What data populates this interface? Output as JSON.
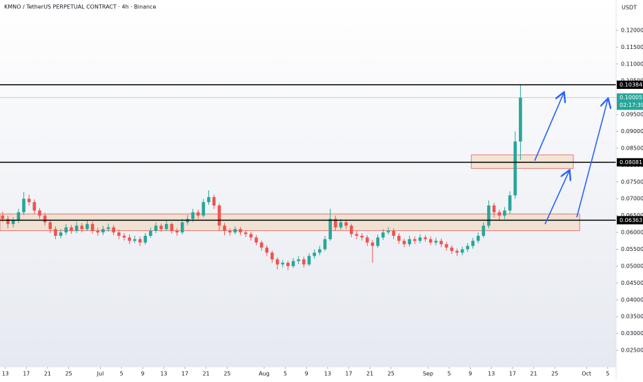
{
  "chart_data": {
    "type": "candlestick",
    "title": "KMNO / TetherUS PERPETUAL CONTRACT · 4h · Binance",
    "y_axis_label": "USDT",
    "up_color": "#26a69a",
    "down_color": "#ef5350",
    "xlim": [
      0,
      116.6
    ],
    "xticks": [
      {
        "value": 1,
        "label": "13"
      },
      {
        "value": 5,
        "label": "17"
      },
      {
        "value": 9,
        "label": "21"
      },
      {
        "value": 13,
        "label": "25"
      },
      {
        "value": 19,
        "label": "Jul"
      },
      {
        "value": 23,
        "label": "5"
      },
      {
        "value": 27,
        "label": "9"
      },
      {
        "value": 31,
        "label": "13"
      },
      {
        "value": 35,
        "label": "17"
      },
      {
        "value": 39,
        "label": "21"
      },
      {
        "value": 43,
        "label": "25"
      },
      {
        "value": 50,
        "label": "Aug"
      },
      {
        "value": 54,
        "label": "5"
      },
      {
        "value": 58,
        "label": "9"
      },
      {
        "value": 62,
        "label": "13"
      },
      {
        "value": 66,
        "label": "17"
      },
      {
        "value": 70,
        "label": "21"
      },
      {
        "value": 74,
        "label": "25"
      },
      {
        "value": 81,
        "label": "Sep"
      },
      {
        "value": 85,
        "label": "5"
      },
      {
        "value": 89,
        "label": "9"
      },
      {
        "value": 93,
        "label": "13"
      },
      {
        "value": 97,
        "label": "17"
      },
      {
        "value": 101,
        "label": "21"
      },
      {
        "value": 105,
        "label": "25"
      },
      {
        "value": 111,
        "label": "Oct"
      },
      {
        "value": 115,
        "label": "5"
      }
    ],
    "ylim": [
      0.0201,
      0.129
    ],
    "yticks": [
      {
        "value": 0.025,
        "label": "0.02500"
      },
      {
        "value": 0.03,
        "label": "0.03000"
      },
      {
        "value": 0.035,
        "label": "0.03500"
      },
      {
        "value": 0.04,
        "label": "0.04000"
      },
      {
        "value": 0.045,
        "label": "0.04500"
      },
      {
        "value": 0.05,
        "label": "0.05000"
      },
      {
        "value": 0.055,
        "label": "0.05500"
      },
      {
        "value": 0.06,
        "label": "0.06000"
      },
      {
        "value": 0.065,
        "label": "0.06500"
      },
      {
        "value": 0.07,
        "label": "0.07000"
      },
      {
        "value": 0.075,
        "label": "0.07500"
      },
      {
        "value": 0.08,
        "label": "0.08000"
      },
      {
        "value": 0.085,
        "label": "0.08500"
      },
      {
        "value": 0.09,
        "label": "0.09000"
      },
      {
        "value": 0.095,
        "label": "0.09500"
      },
      {
        "value": 0.1,
        "label": "0.10000"
      },
      {
        "value": 0.105,
        "label": "0.10500"
      },
      {
        "value": 0.11,
        "label": "0.11000"
      },
      {
        "value": 0.115,
        "label": "0.11500"
      },
      {
        "value": 0.12,
        "label": "0.12000"
      }
    ],
    "grid": false,
    "candles": {
      "open": [
        0.065,
        0.064,
        0.0625,
        0.0635,
        0.066,
        0.07,
        0.069,
        0.0665,
        0.065,
        0.063,
        0.061,
        0.059,
        0.06,
        0.0615,
        0.0605,
        0.062,
        0.061,
        0.0625,
        0.0605,
        0.06,
        0.061,
        0.0615,
        0.06,
        0.059,
        0.0585,
        0.0575,
        0.058,
        0.057,
        0.059,
        0.0605,
        0.062,
        0.061,
        0.0625,
        0.0605,
        0.06,
        0.063,
        0.064,
        0.066,
        0.065,
        0.069,
        0.0705,
        0.068,
        0.062,
        0.0605,
        0.06,
        0.061,
        0.06,
        0.0595,
        0.0585,
        0.057,
        0.0555,
        0.054,
        0.052,
        0.0505,
        0.051,
        0.05,
        0.0515,
        0.052,
        0.0505,
        0.053,
        0.054,
        0.055,
        0.058,
        0.064,
        0.0615,
        0.063,
        0.062,
        0.0595,
        0.059,
        0.0585,
        0.057,
        0.056,
        0.0585,
        0.06,
        0.0605,
        0.059,
        0.0575,
        0.0565,
        0.058,
        0.0575,
        0.0585,
        0.058,
        0.057,
        0.0575,
        0.0565,
        0.0555,
        0.0545,
        0.054,
        0.055,
        0.056,
        0.0575,
        0.059,
        0.062,
        0.068,
        0.066,
        0.065,
        0.0665,
        0.071,
        0.087
      ],
      "high": [
        0.0662,
        0.065,
        0.0645,
        0.067,
        0.072,
        0.0712,
        0.0698,
        0.0672,
        0.0658,
        0.0638,
        0.0618,
        0.061,
        0.0625,
        0.0622,
        0.0632,
        0.0628,
        0.0636,
        0.0632,
        0.0614,
        0.062,
        0.0626,
        0.0622,
        0.0608,
        0.0598,
        0.0594,
        0.059,
        0.0588,
        0.0598,
        0.0614,
        0.063,
        0.0626,
        0.0636,
        0.063,
        0.0612,
        0.064,
        0.0652,
        0.067,
        0.0668,
        0.07,
        0.0725,
        0.0712,
        0.0686,
        0.0628,
        0.0612,
        0.0618,
        0.0616,
        0.0606,
        0.0602,
        0.0592,
        0.0576,
        0.0562,
        0.0546,
        0.0526,
        0.0518,
        0.0516,
        0.0524,
        0.053,
        0.0528,
        0.0538,
        0.055,
        0.056,
        0.059,
        0.067,
        0.065,
        0.064,
        0.0638,
        0.0626,
        0.0604,
        0.0598,
        0.0592,
        0.0578,
        0.0594,
        0.061,
        0.0616,
        0.0612,
        0.0598,
        0.0582,
        0.059,
        0.0588,
        0.0594,
        0.0592,
        0.0588,
        0.0584,
        0.0582,
        0.0572,
        0.0562,
        0.0552,
        0.0558,
        0.0568,
        0.0584,
        0.06,
        0.063,
        0.0695,
        0.0688,
        0.0668,
        0.0675,
        0.0722,
        0.09,
        0.10384
      ],
      "low": [
        0.063,
        0.0612,
        0.0615,
        0.0628,
        0.0652,
        0.068,
        0.0655,
        0.064,
        0.062,
        0.0598,
        0.058,
        0.0582,
        0.0592,
        0.0596,
        0.0598,
        0.06,
        0.0604,
        0.0596,
        0.059,
        0.0592,
        0.0602,
        0.0592,
        0.058,
        0.0576,
        0.0566,
        0.0568,
        0.056,
        0.0564,
        0.0584,
        0.0598,
        0.0602,
        0.0604,
        0.0596,
        0.059,
        0.0594,
        0.0622,
        0.0632,
        0.064,
        0.0644,
        0.0682,
        0.067,
        0.0605,
        0.0592,
        0.059,
        0.0594,
        0.0592,
        0.0586,
        0.0576,
        0.0562,
        0.0546,
        0.053,
        0.051,
        0.049,
        0.0496,
        0.0488,
        0.0494,
        0.0506,
        0.0496,
        0.05,
        0.0522,
        0.0532,
        0.0545,
        0.0575,
        0.0605,
        0.0608,
        0.061,
        0.0586,
        0.058,
        0.0576,
        0.056,
        0.051,
        0.0554,
        0.0578,
        0.0594,
        0.058,
        0.0566,
        0.0556,
        0.0558,
        0.0566,
        0.0568,
        0.0572,
        0.0562,
        0.0562,
        0.0556,
        0.0546,
        0.0536,
        0.053,
        0.0532,
        0.0542,
        0.0552,
        0.0568,
        0.0584,
        0.0612,
        0.0645,
        0.0635,
        0.064,
        0.0655,
        0.07,
        0.0815
      ],
      "close": [
        0.064,
        0.0625,
        0.0635,
        0.066,
        0.07,
        0.069,
        0.0665,
        0.065,
        0.063,
        0.061,
        0.059,
        0.06,
        0.0615,
        0.0605,
        0.062,
        0.061,
        0.0625,
        0.0605,
        0.06,
        0.061,
        0.0615,
        0.06,
        0.059,
        0.0585,
        0.0575,
        0.058,
        0.057,
        0.059,
        0.0605,
        0.062,
        0.061,
        0.0625,
        0.0605,
        0.06,
        0.063,
        0.064,
        0.066,
        0.065,
        0.069,
        0.0705,
        0.068,
        0.062,
        0.0605,
        0.06,
        0.061,
        0.06,
        0.0595,
        0.0585,
        0.057,
        0.0555,
        0.054,
        0.052,
        0.0505,
        0.051,
        0.05,
        0.0515,
        0.052,
        0.0505,
        0.053,
        0.054,
        0.055,
        0.058,
        0.064,
        0.0615,
        0.063,
        0.062,
        0.0595,
        0.059,
        0.0585,
        0.057,
        0.056,
        0.0585,
        0.06,
        0.0605,
        0.059,
        0.0575,
        0.0565,
        0.058,
        0.0575,
        0.0585,
        0.058,
        0.057,
        0.0575,
        0.0565,
        0.0555,
        0.0545,
        0.054,
        0.055,
        0.056,
        0.0575,
        0.059,
        0.062,
        0.068,
        0.066,
        0.065,
        0.0665,
        0.071,
        0.087,
        0.10005
      ]
    },
    "price_lines": [
      {
        "value": 0.10384,
        "color": "#000000"
      },
      {
        "value": 0.10005,
        "color": "#26a69a",
        "countdown": "02:17:39"
      },
      {
        "value": 0.08081,
        "color": "#000000"
      },
      {
        "value": 0.06363,
        "color": "#000000"
      }
    ],
    "zones": [
      {
        "low": 0.0605,
        "high": 0.0655,
        "from": 0,
        "to": 109.7
      },
      {
        "low": 0.079,
        "high": 0.083,
        "from": 89.2,
        "to": 108.5
      }
    ]
  }
}
